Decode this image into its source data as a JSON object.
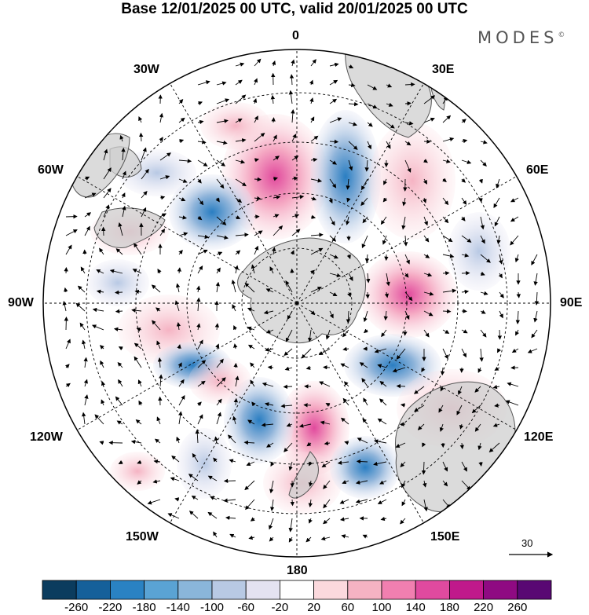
{
  "title": "Base 12/01/2025 00 UTC, valid 20/01/2025 00 UTC",
  "brand": "MODES",
  "brand_mark": "©",
  "map": {
    "projection": "south-polar-stereographic",
    "longitude_labels": {
      "top": "0",
      "bottom": "180",
      "left": "90W",
      "right": "90E",
      "upper_left_1": "30W",
      "upper_left_2": "60W",
      "upper_right_1": "30E",
      "upper_right_2": "60E",
      "lower_left_1": "120W",
      "lower_left_2": "150W",
      "lower_right_1": "120E",
      "lower_right_2": "150E"
    },
    "vector_reference": {
      "value": "30"
    }
  },
  "colorbar": {
    "colors": [
      "#0b3c5e",
      "#15609a",
      "#2a82c3",
      "#5aa3d4",
      "#8ab6da",
      "#b8c9e4",
      "#e4e2f1",
      "#ffffff",
      "#fbd9dd",
      "#f5b3c3",
      "#f17fb0",
      "#e04a9f",
      "#c0198b",
      "#8f0a82",
      "#590873"
    ],
    "ticks": [
      "-260",
      "-220",
      "-180",
      "-140",
      "-100",
      "-60",
      "-20",
      "20",
      "60",
      "100",
      "140",
      "180",
      "220",
      "260"
    ]
  },
  "colors": {
    "land": "#cfcfcf",
    "coast": "#555555"
  }
}
